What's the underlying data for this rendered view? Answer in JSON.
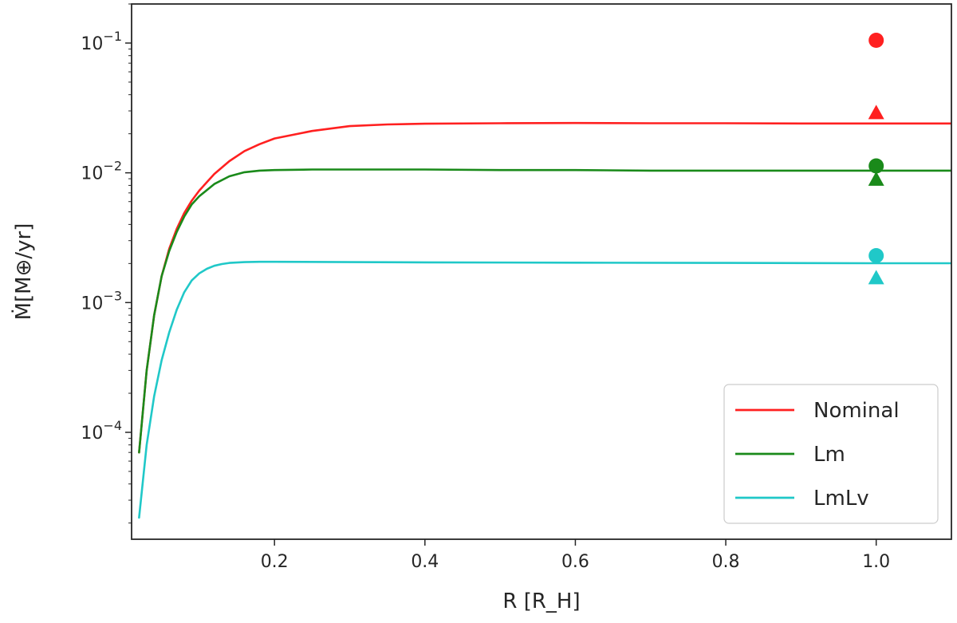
{
  "chart_data": {
    "type": "line",
    "xlabel": "R [R_H]",
    "ylabel": "Ṁ[M⊕/yr]",
    "yscale": "log",
    "xlim": [
      0.01,
      1.1
    ],
    "ylim": [
      1.5e-05,
      0.2
    ],
    "x_ticks": [
      {
        "value": 0.2,
        "label": "0.2"
      },
      {
        "value": 0.4,
        "label": "0.4"
      },
      {
        "value": 0.6,
        "label": "0.6"
      },
      {
        "value": 0.8,
        "label": "0.8"
      },
      {
        "value": 1.0,
        "label": "1.0"
      }
    ],
    "y_ticks": [
      {
        "value": 0.1,
        "base": "10",
        "exp": "−1"
      },
      {
        "value": 0.01,
        "base": "10",
        "exp": "−2"
      },
      {
        "value": 0.001,
        "base": "10",
        "exp": "−3"
      },
      {
        "value": 0.0001,
        "base": "10",
        "exp": "−4"
      }
    ],
    "legend_position": "bottom-right",
    "series": [
      {
        "name": "Nominal",
        "color": "#ff2020",
        "x": [
          0.02,
          0.03,
          0.04,
          0.05,
          0.06,
          0.07,
          0.08,
          0.09,
          0.1,
          0.12,
          0.14,
          0.16,
          0.18,
          0.2,
          0.25,
          0.3,
          0.35,
          0.4,
          0.5,
          0.6,
          0.7,
          0.8,
          0.9,
          1.0,
          1.1
        ],
        "y": [
          7e-05,
          0.0003,
          0.0008,
          0.0016,
          0.0026,
          0.0037,
          0.0049,
          0.0061,
          0.0073,
          0.0098,
          0.0123,
          0.0147,
          0.0166,
          0.0184,
          0.021,
          0.0229,
          0.0236,
          0.0239,
          0.0241,
          0.0242,
          0.0241,
          0.0241,
          0.024,
          0.024,
          0.024
        ]
      },
      {
        "name": "Lm",
        "color": "#1a8a1a",
        "x": [
          0.02,
          0.03,
          0.04,
          0.05,
          0.06,
          0.07,
          0.08,
          0.09,
          0.1,
          0.12,
          0.14,
          0.16,
          0.18,
          0.2,
          0.25,
          0.3,
          0.4,
          0.5,
          0.6,
          0.7,
          0.8,
          0.9,
          1.0,
          1.1
        ],
        "y": [
          7e-05,
          0.0003,
          0.0008,
          0.0016,
          0.0025,
          0.0035,
          0.0046,
          0.0057,
          0.0066,
          0.0082,
          0.0094,
          0.0101,
          0.0104,
          0.0105,
          0.0106,
          0.0106,
          0.0106,
          0.0105,
          0.0105,
          0.0104,
          0.0104,
          0.0104,
          0.0104,
          0.0104
        ]
      },
      {
        "name": "LmLv",
        "color": "#20c8c8",
        "x": [
          0.02,
          0.03,
          0.04,
          0.05,
          0.06,
          0.07,
          0.08,
          0.09,
          0.1,
          0.11,
          0.12,
          0.13,
          0.14,
          0.16,
          0.18,
          0.2,
          0.3,
          0.4,
          0.6,
          0.8,
          1.0,
          1.1
        ],
        "y": [
          2.2e-05,
          8e-05,
          0.00019,
          0.00036,
          0.00059,
          0.00088,
          0.0012,
          0.00148,
          0.00168,
          0.00182,
          0.00192,
          0.00198,
          0.00202,
          0.00205,
          0.00206,
          0.00206,
          0.00205,
          0.00204,
          0.00203,
          0.00202,
          0.00201,
          0.00201
        ]
      }
    ],
    "markers": [
      {
        "series": "Nominal",
        "shape": "circle",
        "x": 1.0,
        "y": 0.105,
        "color": "#ff2020"
      },
      {
        "series": "Nominal",
        "shape": "triangle",
        "x": 1.0,
        "y": 0.029,
        "color": "#ff2020"
      },
      {
        "series": "Lm",
        "shape": "circle",
        "x": 1.0,
        "y": 0.0113,
        "color": "#1a8a1a"
      },
      {
        "series": "Lm",
        "shape": "triangle",
        "x": 1.0,
        "y": 0.0089,
        "color": "#1a8a1a"
      },
      {
        "series": "LmLv",
        "shape": "circle",
        "x": 1.0,
        "y": 0.0023,
        "color": "#20c8c8"
      },
      {
        "series": "LmLv",
        "shape": "triangle",
        "x": 1.0,
        "y": 0.00155,
        "color": "#20c8c8"
      }
    ]
  }
}
